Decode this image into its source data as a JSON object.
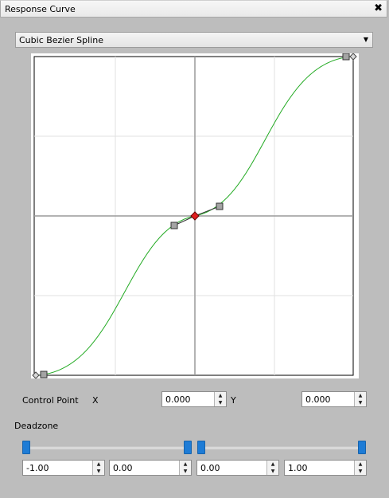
{
  "window": {
    "title": "Response Curve",
    "close_glyph": "✖"
  },
  "curve_type": {
    "selected": "Cubic Bezier Spline",
    "arrow_glyph": "▼"
  },
  "graph": {
    "grid_color": "#dcdcdc",
    "axis_color": "#a0a0a0",
    "curve_color": "#22aa22",
    "center_point_color": "#e02020"
  },
  "control_point": {
    "label": "Control Point",
    "x_label": "X",
    "x_value": "0.000",
    "y_label": "Y",
    "y_value": "0.000"
  },
  "deadzone": {
    "label": "Deadzone",
    "fields": [
      "-1.00",
      "0.00",
      "0.00",
      "1.00"
    ]
  },
  "spin_glyphs": {
    "up": "▲",
    "down": "▼"
  },
  "accent_color": "#1e7cd6"
}
